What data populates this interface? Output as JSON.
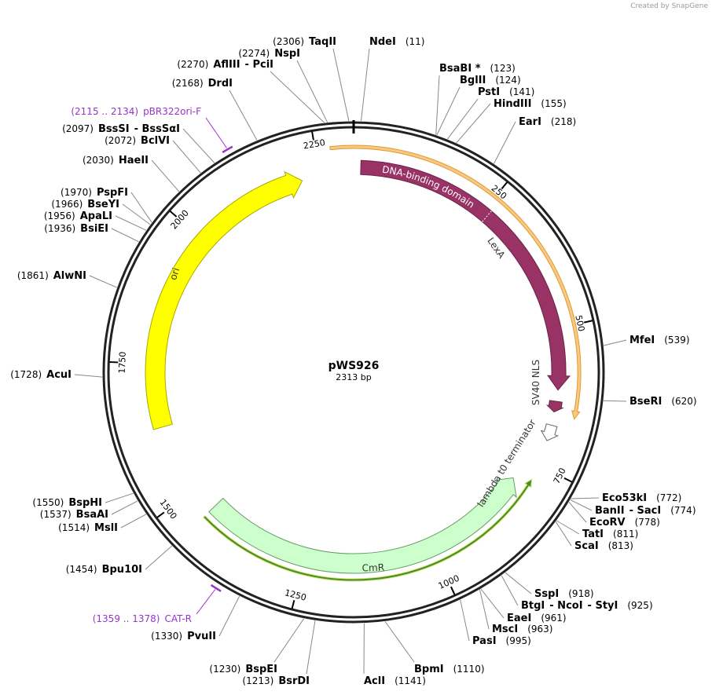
{
  "header": {
    "credit": "Created by SnapGene"
  },
  "plasmid": {
    "name": "pWS926",
    "length": "2313 bp"
  },
  "ruler": {
    "ticks": [
      "250",
      "500",
      "750",
      "1000",
      "1250",
      "1500",
      "1750",
      "2000",
      "2250"
    ]
  },
  "features": [
    {
      "label": "DNA-binding domain"
    },
    {
      "label": "LexA"
    },
    {
      "label": "SV40 NLS"
    },
    {
      "label": "lambda t0 terminator"
    },
    {
      "label": "CmR"
    },
    {
      "label": "ori"
    }
  ],
  "primers": [
    {
      "range": "(2115 .. 2134)",
      "name": "pBR322ori-F"
    },
    {
      "range": "(1359 .. 1378)",
      "name": "CAT-R"
    }
  ],
  "sites": [
    {
      "position": "(11)",
      "names": [
        "NdeI"
      ]
    },
    {
      "position": "(123)",
      "names": [
        "BsaBI *"
      ]
    },
    {
      "position": "(124)",
      "names": [
        "BglII"
      ]
    },
    {
      "position": "(141)",
      "names": [
        "PstI"
      ]
    },
    {
      "position": "(155)",
      "names": [
        "HindIII"
      ]
    },
    {
      "position": "(218)",
      "names": [
        "EarI"
      ]
    },
    {
      "position": "(539)",
      "names": [
        "MfeI"
      ]
    },
    {
      "position": "(620)",
      "names": [
        "BseRI"
      ]
    },
    {
      "position": "(772)",
      "names": [
        "Eco53kI"
      ]
    },
    {
      "position": "(774)",
      "names": [
        "BanII",
        "- SacI"
      ]
    },
    {
      "position": "(778)",
      "names": [
        "EcoRV"
      ]
    },
    {
      "position": "(811)",
      "names": [
        "TatI"
      ]
    },
    {
      "position": "(813)",
      "names": [
        "ScaI"
      ]
    },
    {
      "position": "(918)",
      "names": [
        "SspI"
      ]
    },
    {
      "position": "(925)",
      "names": [
        "BtgI",
        "- NcoI",
        "- StyI"
      ]
    },
    {
      "position": "(961)",
      "names": [
        "EaeI"
      ]
    },
    {
      "position": "(963)",
      "names": [
        "MscI"
      ]
    },
    {
      "position": "(995)",
      "names": [
        "PasI"
      ]
    },
    {
      "position": "(1110)",
      "names": [
        "BpmI"
      ]
    },
    {
      "position": "(1141)",
      "names": [
        "AclI"
      ]
    },
    {
      "position": "(2306)",
      "names": [
        "TaqII"
      ]
    },
    {
      "position": "(2274)",
      "names": [
        "NspI"
      ]
    },
    {
      "position": "(2270)",
      "names": [
        "AflIII",
        "- PciI"
      ]
    },
    {
      "position": "(2168)",
      "names": [
        "DrdI"
      ]
    },
    {
      "position": "(2097)",
      "names": [
        "BssSI",
        "- BssSαI"
      ]
    },
    {
      "position": "(2072)",
      "names": [
        "BclVI"
      ]
    },
    {
      "position": "(2030)",
      "names": [
        "HaeII"
      ]
    },
    {
      "position": "(1970)",
      "names": [
        "PspFI"
      ]
    },
    {
      "position": "(1966)",
      "names": [
        "BseYI"
      ]
    },
    {
      "position": "(1956)",
      "names": [
        "ApaLI"
      ]
    },
    {
      "position": "(1936)",
      "names": [
        "BsiEI"
      ]
    },
    {
      "position": "(1861)",
      "names": [
        "AlwNI"
      ]
    },
    {
      "position": "(1728)",
      "names": [
        "AcuI"
      ]
    },
    {
      "position": "(1550)",
      "names": [
        "BspHI"
      ]
    },
    {
      "position": "(1537)",
      "names": [
        "BsaAI"
      ]
    },
    {
      "position": "(1514)",
      "names": [
        "MslI"
      ]
    },
    {
      "position": "(1454)",
      "names": [
        "Bpu10I"
      ]
    },
    {
      "position": "(1330)",
      "names": [
        "PvuII"
      ]
    },
    {
      "position": "(1230)",
      "names": [
        "BspEI"
      ]
    },
    {
      "position": "(1213)",
      "names": [
        "BsrDI"
      ]
    }
  ]
}
